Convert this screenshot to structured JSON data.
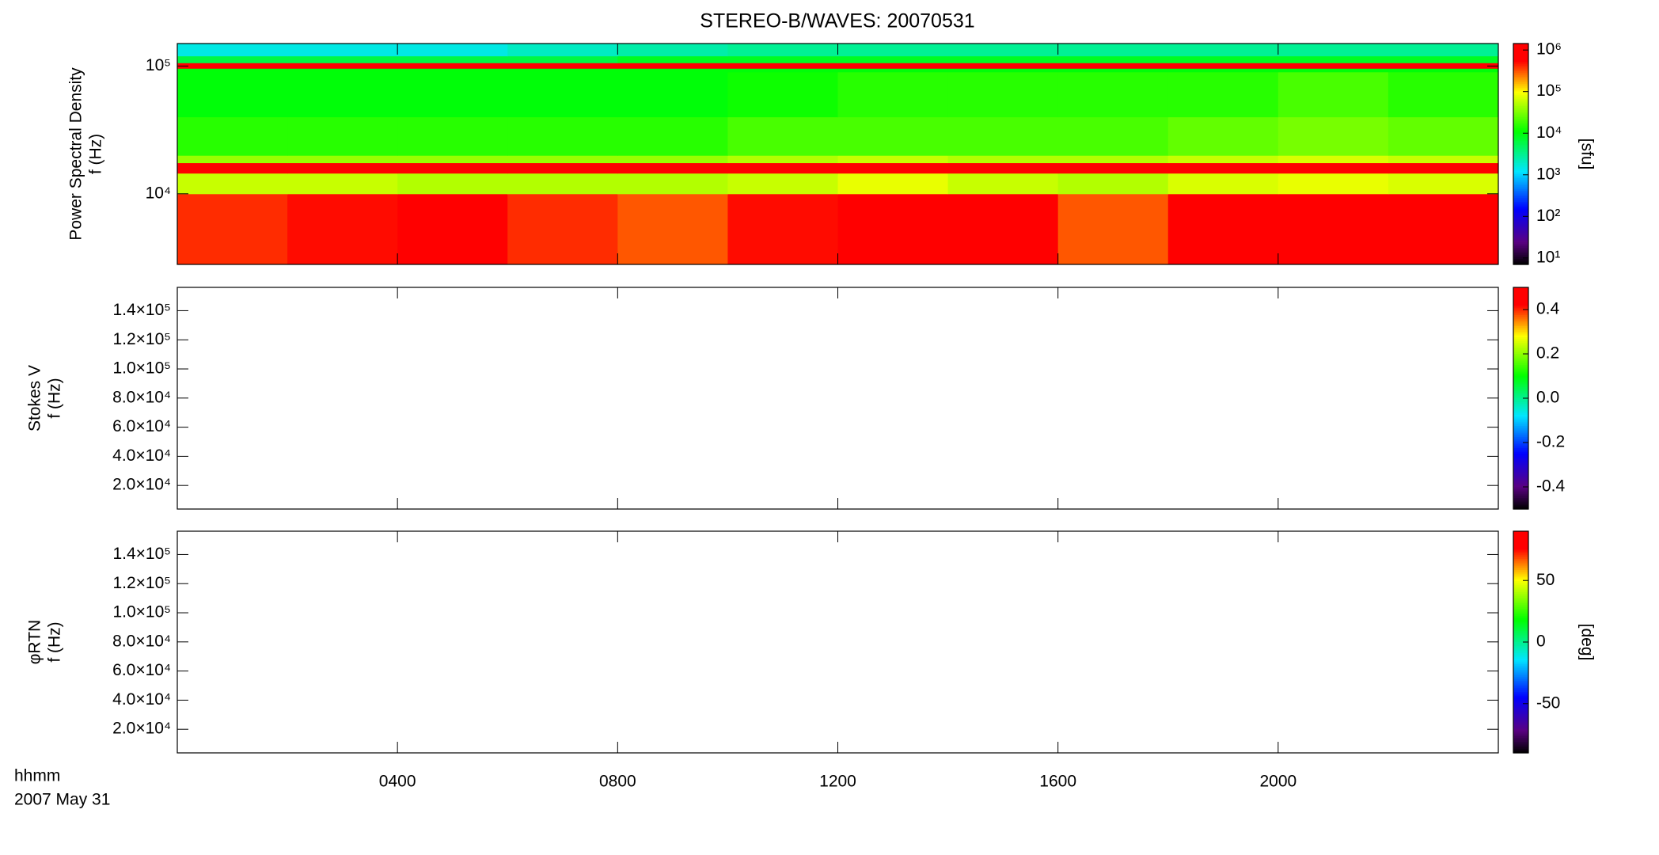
{
  "chart_data": [
    {
      "type": "heatmap",
      "title": "STEREO-B/WAVES: 20070531",
      "ylabel": [
        "Power Spectral Density",
        "f (Hz)"
      ],
      "ylog": true,
      "ylim": [
        2800,
        150000
      ],
      "yticks": [
        {
          "value": 10000,
          "label": "10⁴"
        },
        {
          "value": 100000,
          "label": "10⁵"
        }
      ],
      "xlim": [
        0,
        24
      ],
      "xticks": [
        4,
        8,
        12,
        16,
        20
      ],
      "x_bins": [
        0,
        2,
        4,
        6,
        8,
        10,
        12,
        14,
        16,
        18,
        20,
        22,
        24
      ],
      "y_bins": [
        2800,
        10000,
        14500,
        17500,
        20000,
        40000,
        90000,
        96000,
        106000,
        120000,
        150000
      ],
      "values": [
        [
          400000,
          500000,
          600000,
          400000,
          300000,
          500000,
          1000000,
          800000,
          300000,
          900000,
          1000000,
          900000
        ],
        [
          60000,
          60000,
          50000,
          50000,
          50000,
          60000,
          80000,
          60000,
          50000,
          70000,
          80000,
          70000
        ],
        [
          800000,
          800000,
          800000,
          800000,
          800000,
          800000,
          800000,
          800000,
          800000,
          800000,
          800000,
          800000
        ],
        [
          40000,
          40000,
          40000,
          40000,
          40000,
          50000,
          60000,
          50000,
          50000,
          60000,
          70000,
          60000
        ],
        [
          15000,
          15000,
          15000,
          15000,
          15000,
          20000,
          20000,
          20000,
          20000,
          25000,
          30000,
          25000
        ],
        [
          10000,
          10000,
          10000,
          10000,
          10000,
          12000,
          15000,
          15000,
          15000,
          15000,
          20000,
          15000
        ],
        [
          10000,
          10000,
          10000,
          10000,
          10000,
          10000,
          10000,
          10000,
          10000,
          10000,
          10000,
          10000
        ],
        [
          1000000,
          1000000,
          1000000,
          1000000,
          1000000,
          1000000,
          1000000,
          1000000,
          1000000,
          1000000,
          1000000,
          1000000
        ],
        [
          6000,
          6000,
          6000,
          6000,
          8000,
          8000,
          8000,
          8000,
          8000,
          8000,
          8000,
          8000
        ],
        [
          1500,
          1500,
          1500,
          2000,
          2500,
          3000,
          3000,
          3000,
          3000,
          3000,
          3000,
          3000
        ]
      ],
      "colorbar": {
        "label": "[sfu]",
        "log": true,
        "lim": [
          7,
          1430000
        ],
        "ticks": [
          {
            "value": 10,
            "label": "10¹"
          },
          {
            "value": 100,
            "label": "10²"
          },
          {
            "value": 1000,
            "label": "10³"
          },
          {
            "value": 10000,
            "label": "10⁴"
          },
          {
            "value": 100000,
            "label": "10⁵"
          },
          {
            "value": 1000000,
            "label": "10⁶"
          }
        ]
      }
    },
    {
      "type": "heatmap",
      "ylabel": [
        "Stokes V",
        "f (Hz)"
      ],
      "ylog": false,
      "ylim": [
        3800,
        156000
      ],
      "yticks": [
        {
          "value": 20000,
          "label": "2.0×10⁴"
        },
        {
          "value": 40000,
          "label": "4.0×10⁴"
        },
        {
          "value": 60000,
          "label": "6.0×10⁴"
        },
        {
          "value": 80000,
          "label": "8.0×10⁴"
        },
        {
          "value": 100000,
          "label": "1.0×10⁵"
        },
        {
          "value": 120000,
          "label": "1.2×10⁵"
        },
        {
          "value": 140000,
          "label": "1.4×10⁵"
        }
      ],
      "xlim": [
        0,
        24
      ],
      "xticks": [
        4,
        8,
        12,
        16,
        20
      ],
      "colorbar": {
        "log": false,
        "lim": [
          -0.5,
          0.5
        ],
        "ticks": [
          -0.4,
          -0.2,
          {
            "value": 0,
            "label": "0.0"
          },
          0.2,
          0.4
        ]
      }
    },
    {
      "type": "heatmap",
      "ylabel": [
        "φRTN",
        "f (Hz)"
      ],
      "ylog": false,
      "ylim": [
        3800,
        156000
      ],
      "yticks": [
        {
          "value": 20000,
          "label": "2.0×10⁴"
        },
        {
          "value": 40000,
          "label": "4.0×10⁴"
        },
        {
          "value": 60000,
          "label": "6.0×10⁴"
        },
        {
          "value": 80000,
          "label": "8.0×10⁴"
        },
        {
          "value": 100000,
          "label": "1.0×10⁵"
        },
        {
          "value": 120000,
          "label": "1.2×10⁵"
        },
        {
          "value": 140000,
          "label": "1.4×10⁵"
        }
      ],
      "xlim": [
        0,
        24
      ],
      "xticks": [
        {
          "value": 4,
          "label": "0400"
        },
        {
          "value": 8,
          "label": "0800"
        },
        {
          "value": 12,
          "label": "1200"
        },
        {
          "value": 16,
          "label": "1600"
        },
        {
          "value": 20,
          "label": "2000"
        }
      ],
      "xlabel": "hhmm",
      "date": "2007 May 31",
      "colorbar": {
        "label": "[deg]",
        "log": false,
        "lim": [
          -90,
          90
        ],
        "ticks": [
          -50,
          0,
          50
        ]
      }
    }
  ]
}
